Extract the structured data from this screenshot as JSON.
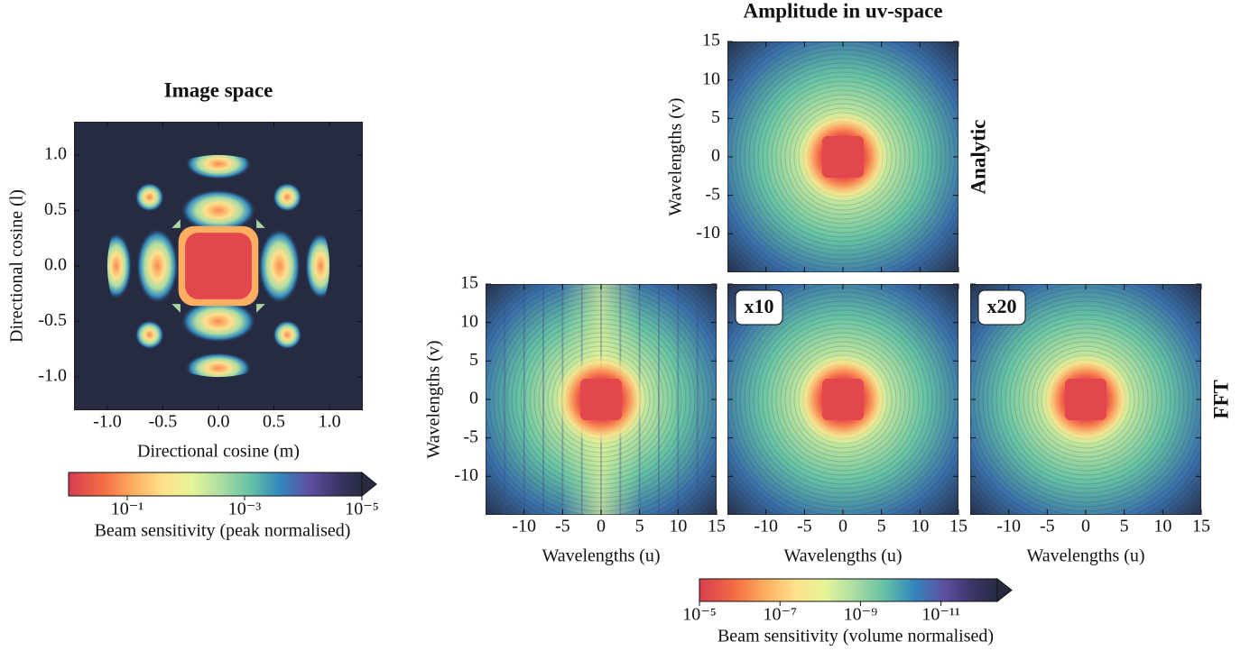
{
  "chart_data": [
    {
      "type": "heatmap",
      "title": "Image space",
      "xlabel": "Directional cosine (m)",
      "ylabel": "Directional cosine (l)",
      "xlim": [
        -1.3,
        1.3
      ],
      "ylim": [
        -1.3,
        1.3
      ],
      "xticks": [
        {
          "value": -1,
          "label": "-1.0"
        },
        -0.5,
        {
          "value": 0,
          "label": "0.0"
        },
        0.5,
        {
          "value": 1,
          "label": "1.0"
        }
      ],
      "yticks": [
        {
          "value": -1,
          "label": "-1.0"
        },
        -0.5,
        {
          "value": 0,
          "label": "0.0"
        },
        0.5,
        {
          "value": 1,
          "label": "1.0"
        }
      ],
      "x_tick_labels_shown": true,
      "y_tick_labels_shown": true
    },
    {
      "type": "colorbar",
      "label": "Beam sensitivity (peak normalised)",
      "clim": [
        1,
        1e-05
      ],
      "log": true,
      "extend": "max",
      "ticks": [
        {
          "value": 0.1,
          "label": "10⁻¹"
        },
        {
          "value": 0.001,
          "label": "10⁻³"
        },
        {
          "value": 1e-05,
          "label": "10⁻⁵"
        }
      ]
    },
    {
      "type": "heatmap",
      "title": "Amplitude in uv-space",
      "row_label": "Analytic",
      "ylabel": "Wavelengths (v)",
      "xlim": [
        -15,
        15
      ],
      "ylim": [
        -15,
        15
      ],
      "xticks": [
        -10,
        -5,
        0,
        5,
        10,
        15
      ],
      "yticks": [
        -10,
        -5,
        0,
        5,
        10,
        15
      ],
      "x_tick_labels_shown": false,
      "y_tick_labels_shown": true
    },
    {
      "type": "heatmap",
      "xlabel": "Wavelengths (u)",
      "ylabel": "Wavelengths (v)",
      "xlim": [
        -15,
        15
      ],
      "ylim": [
        -15,
        15
      ],
      "xticks": [
        -10,
        -5,
        0,
        5,
        10,
        15
      ],
      "yticks": [
        -10,
        -5,
        0,
        5,
        10,
        15
      ],
      "x_tick_labels_shown": true,
      "y_tick_labels_shown": true
    },
    {
      "type": "heatmap",
      "annotation": "x10",
      "xlabel": "Wavelengths (u)",
      "xlim": [
        -15,
        15
      ],
      "ylim": [
        -15,
        15
      ],
      "xticks": [
        -10,
        -5,
        0,
        5,
        10,
        15
      ],
      "yticks": [
        -10,
        -5,
        0,
        5,
        10,
        15
      ],
      "x_tick_labels_shown": true,
      "y_tick_labels_shown": false
    },
    {
      "type": "heatmap",
      "annotation": "x20",
      "row_label": "FFT",
      "xlabel": "Wavelengths (u)",
      "xlim": [
        -15,
        15
      ],
      "ylim": [
        -15,
        15
      ],
      "xticks": [
        -10,
        -5,
        0,
        5,
        10,
        15
      ],
      "yticks": [
        -10,
        -5,
        0,
        5,
        10,
        15
      ],
      "x_tick_labels_shown": true,
      "y_tick_labels_shown": false
    },
    {
      "type": "colorbar",
      "label": "Beam sensitivity (volume normalised)",
      "clim": [
        1e-05,
        4e-13
      ],
      "log": true,
      "extend": "max",
      "ticks": [
        {
          "value": 1e-05,
          "label": "10⁻⁵"
        },
        {
          "value": 1e-07,
          "label": "10⁻⁷"
        },
        {
          "value": 1e-09,
          "label": "10⁻⁹"
        },
        {
          "value": 1e-11,
          "label": "10⁻¹¹"
        }
      ]
    }
  ]
}
